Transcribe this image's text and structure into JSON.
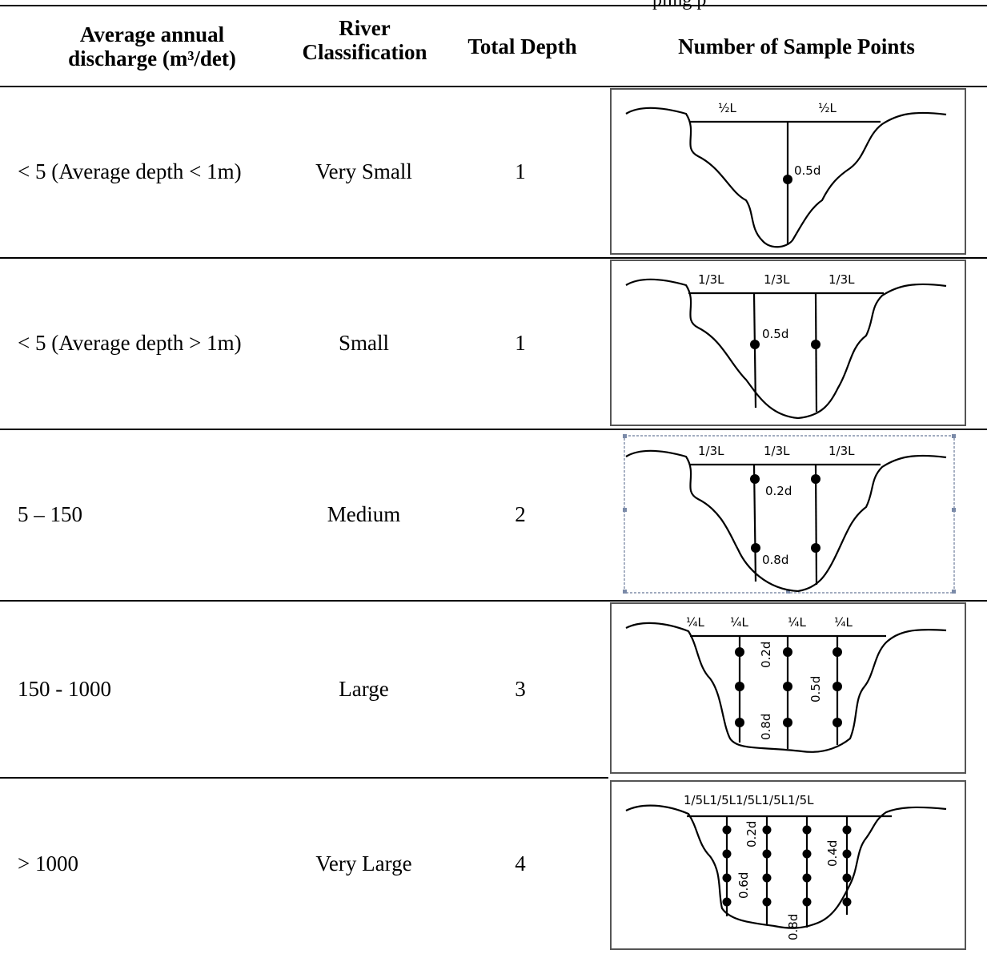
{
  "header": {
    "caption_fragment": "pling p",
    "col_discharge_line1": "Average annual",
    "col_discharge_line2": "discharge (m³/det)",
    "col_classification_line1": "River",
    "col_classification_line2": "Classification",
    "col_depth": "Total Depth",
    "col_points": "Number of Sample Points"
  },
  "rows": [
    {
      "discharge": "< 5 (Average depth < 1m)",
      "classification": "Very Small",
      "depth": "1",
      "labels": [
        "½L",
        "½L"
      ],
      "depth_labels": [
        "0.5d"
      ]
    },
    {
      "discharge": "< 5 (Average depth > 1m)",
      "classification": "Small",
      "depth": "1",
      "labels": [
        "1/3L",
        "1/3L",
        "1/3L"
      ],
      "depth_labels": [
        "0.5d"
      ]
    },
    {
      "discharge": "5 – 150",
      "classification": "Medium",
      "depth": "2",
      "labels": [
        "1/3L",
        "1/3L",
        "1/3L"
      ],
      "depth_labels": [
        "0.2d",
        "0.8d"
      ]
    },
    {
      "discharge": "150 - 1000",
      "classification": "Large",
      "depth": "3",
      "labels": [
        "¼L",
        "¼L",
        "¼L",
        "¼L"
      ],
      "depth_labels": [
        "0.2d",
        "0.5d",
        "0.8d"
      ]
    },
    {
      "discharge": "> 1000",
      "classification": "Very Large",
      "depth": "4",
      "labels": [
        "1/5L1/5L1/5L1/5L1/5L"
      ],
      "depth_labels": [
        "0.2d",
        "0.4d",
        "0.6d",
        "0.8d"
      ]
    }
  ]
}
